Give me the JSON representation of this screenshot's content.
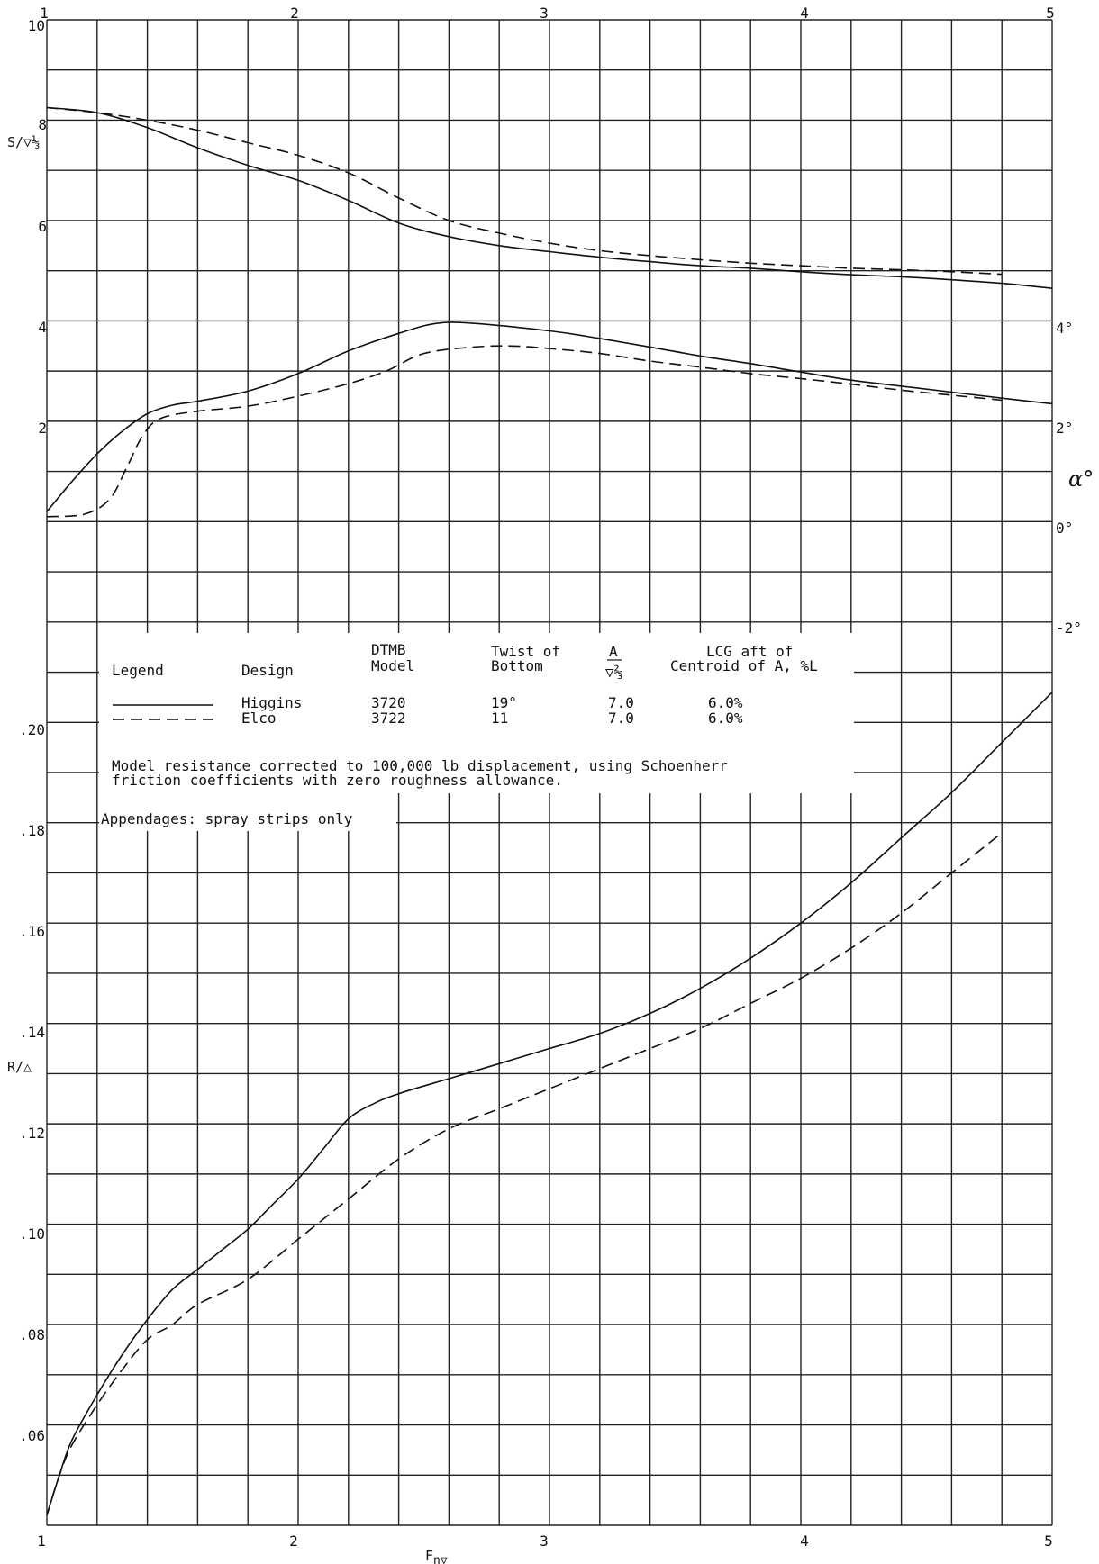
{
  "chart_data": {
    "type": "line",
    "x_ticks_top": [
      "1",
      "2",
      "3",
      "4",
      "5"
    ],
    "x_ticks_bottom": [
      "1",
      "2",
      "3",
      "4",
      "5"
    ],
    "xlabel": "F",
    "xlabel_sub": "n▽",
    "xlim": [
      1,
      5
    ],
    "upper_left_axis": {
      "label": "S/▽⅓",
      "ticks": [
        "10",
        "8",
        "6",
        "4",
        "2"
      ]
    },
    "right_axis": {
      "label": "α°",
      "ticks": [
        "4°",
        "2°",
        "0°",
        "-2°"
      ]
    },
    "lower_left_axis": {
      "label": "R/△",
      "ticks": [
        ".20",
        ".18",
        ".16",
        ".14",
        ".12",
        ".10",
        ".08",
        ".06"
      ],
      "ylim": [
        0.04,
        0.22
      ]
    },
    "series": [
      {
        "name": "Higgins",
        "quantity": "S/▽⅓",
        "style": "solid",
        "points": [
          [
            1.0,
            8.25
          ],
          [
            1.2,
            8.15
          ],
          [
            1.4,
            7.85
          ],
          [
            1.6,
            7.45
          ],
          [
            1.8,
            7.1
          ],
          [
            2.0,
            6.8
          ],
          [
            2.2,
            6.4
          ],
          [
            2.4,
            5.95
          ],
          [
            2.6,
            5.68
          ],
          [
            2.8,
            5.5
          ],
          [
            3.0,
            5.38
          ],
          [
            3.2,
            5.27
          ],
          [
            3.4,
            5.18
          ],
          [
            3.6,
            5.1
          ],
          [
            3.8,
            5.05
          ],
          [
            4.0,
            4.98
          ],
          [
            4.2,
            4.92
          ],
          [
            4.4,
            4.88
          ],
          [
            4.6,
            4.82
          ],
          [
            4.8,
            4.75
          ],
          [
            5.0,
            4.65
          ]
        ]
      },
      {
        "name": "Elco",
        "quantity": "S/▽⅓",
        "style": "dashed",
        "points": [
          [
            1.0,
            8.25
          ],
          [
            1.2,
            8.15
          ],
          [
            1.4,
            8.0
          ],
          [
            1.6,
            7.8
          ],
          [
            1.8,
            7.55
          ],
          [
            2.0,
            7.3
          ],
          [
            2.2,
            6.95
          ],
          [
            2.4,
            6.45
          ],
          [
            2.6,
            6.0
          ],
          [
            2.8,
            5.75
          ],
          [
            3.0,
            5.55
          ],
          [
            3.2,
            5.4
          ],
          [
            3.4,
            5.3
          ],
          [
            3.6,
            5.22
          ],
          [
            3.8,
            5.15
          ],
          [
            4.0,
            5.1
          ],
          [
            4.2,
            5.05
          ],
          [
            4.4,
            5.02
          ],
          [
            4.6,
            4.98
          ],
          [
            4.8,
            4.93
          ]
        ]
      },
      {
        "name": "Higgins",
        "quantity": "α°",
        "style": "solid",
        "points": [
          [
            1.0,
            0.2
          ],
          [
            1.1,
            0.8
          ],
          [
            1.2,
            1.35
          ],
          [
            1.3,
            1.8
          ],
          [
            1.4,
            2.15
          ],
          [
            1.5,
            2.32
          ],
          [
            1.6,
            2.4
          ],
          [
            1.8,
            2.6
          ],
          [
            2.0,
            2.95
          ],
          [
            2.2,
            3.4
          ],
          [
            2.4,
            3.75
          ],
          [
            2.55,
            3.95
          ],
          [
            2.7,
            3.95
          ],
          [
            3.0,
            3.8
          ],
          [
            3.2,
            3.65
          ],
          [
            3.4,
            3.48
          ],
          [
            3.6,
            3.3
          ],
          [
            3.8,
            3.15
          ],
          [
            4.0,
            2.98
          ],
          [
            4.2,
            2.82
          ],
          [
            4.4,
            2.7
          ],
          [
            4.6,
            2.58
          ],
          [
            4.8,
            2.46
          ],
          [
            5.0,
            2.35
          ]
        ]
      },
      {
        "name": "Elco",
        "quantity": "α°",
        "style": "dashed",
        "points": [
          [
            1.0,
            0.1
          ],
          [
            1.15,
            0.15
          ],
          [
            1.25,
            0.45
          ],
          [
            1.32,
            1.1
          ],
          [
            1.38,
            1.7
          ],
          [
            1.45,
            2.05
          ],
          [
            1.6,
            2.2
          ],
          [
            1.8,
            2.3
          ],
          [
            2.0,
            2.5
          ],
          [
            2.2,
            2.75
          ],
          [
            2.35,
            3.0
          ],
          [
            2.5,
            3.35
          ],
          [
            2.7,
            3.48
          ],
          [
            2.85,
            3.5
          ],
          [
            3.0,
            3.45
          ],
          [
            3.2,
            3.35
          ],
          [
            3.4,
            3.2
          ],
          [
            3.6,
            3.08
          ],
          [
            3.8,
            2.95
          ],
          [
            4.0,
            2.85
          ],
          [
            4.2,
            2.74
          ],
          [
            4.4,
            2.62
          ],
          [
            4.6,
            2.52
          ],
          [
            4.8,
            2.42
          ]
        ]
      },
      {
        "name": "Higgins",
        "quantity": "R/△",
        "style": "solid",
        "points": [
          [
            1.0,
            0.042
          ],
          [
            1.05,
            0.05
          ],
          [
            1.1,
            0.057
          ],
          [
            1.2,
            0.066
          ],
          [
            1.3,
            0.074
          ],
          [
            1.4,
            0.081
          ],
          [
            1.5,
            0.087
          ],
          [
            1.6,
            0.091
          ],
          [
            1.7,
            0.095
          ],
          [
            1.8,
            0.099
          ],
          [
            1.9,
            0.104
          ],
          [
            2.0,
            0.109
          ],
          [
            2.1,
            0.115
          ],
          [
            2.2,
            0.121
          ],
          [
            2.3,
            0.124
          ],
          [
            2.4,
            0.126
          ],
          [
            2.6,
            0.129
          ],
          [
            2.8,
            0.132
          ],
          [
            3.0,
            0.135
          ],
          [
            3.2,
            0.138
          ],
          [
            3.4,
            0.142
          ],
          [
            3.6,
            0.147
          ],
          [
            3.8,
            0.153
          ],
          [
            4.0,
            0.16
          ],
          [
            4.2,
            0.168
          ],
          [
            4.4,
            0.177
          ],
          [
            4.6,
            0.186
          ],
          [
            4.8,
            0.196
          ],
          [
            5.0,
            0.206
          ]
        ]
      },
      {
        "name": "Elco",
        "quantity": "R/△",
        "style": "dashed",
        "points": [
          [
            1.0,
            0.042
          ],
          [
            1.05,
            0.05
          ],
          [
            1.1,
            0.056
          ],
          [
            1.2,
            0.064
          ],
          [
            1.3,
            0.071
          ],
          [
            1.4,
            0.077
          ],
          [
            1.5,
            0.08
          ],
          [
            1.6,
            0.084
          ],
          [
            1.8,
            0.089
          ],
          [
            2.0,
            0.097
          ],
          [
            2.2,
            0.105
          ],
          [
            2.4,
            0.113
          ],
          [
            2.6,
            0.119
          ],
          [
            2.8,
            0.123
          ],
          [
            3.0,
            0.127
          ],
          [
            3.2,
            0.131
          ],
          [
            3.4,
            0.135
          ],
          [
            3.6,
            0.139
          ],
          [
            3.8,
            0.144
          ],
          [
            4.0,
            0.149
          ],
          [
            4.2,
            0.155
          ],
          [
            4.4,
            0.162
          ],
          [
            4.6,
            0.17
          ],
          [
            4.8,
            0.178
          ]
        ]
      }
    ],
    "legend": {
      "placement": "middle-left",
      "headers": {
        "legend": "Legend",
        "design": "Design",
        "model_top": "DTMB",
        "model_bottom": "Model",
        "twist_top": "Twist of",
        "twist_bottom": "Bottom",
        "ratio_top": "A",
        "ratio_bottom": "▽⅔",
        "lcg_top": "LCG aft of",
        "lcg_bottom": "Centroid of A, %L"
      },
      "rows": [
        {
          "design": "Higgins",
          "model": "3720",
          "twist": "19°",
          "ratio": "7.0",
          "lcg": "6.0%",
          "style": "solid"
        },
        {
          "design": "Elco",
          "model": "3722",
          "twist": "11",
          "ratio": "7.0",
          "lcg": "6.0%",
          "style": "dashed"
        }
      ],
      "note_line1": "Model resistance corrected to 100,000 lb displacement, using Schoenherr",
      "note_line2": "friction coefficients with zero roughness allowance.",
      "appendages": "Appendages: spray strips only"
    }
  }
}
